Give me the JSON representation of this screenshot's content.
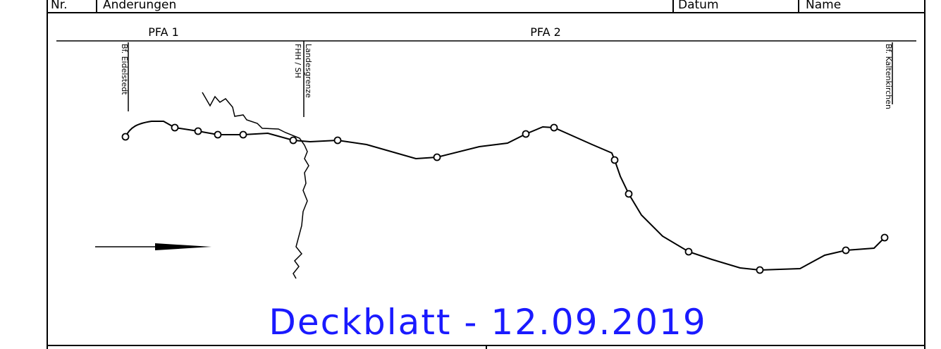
{
  "header": {
    "columns": [
      "Nr.",
      "Änderungen",
      "Datum",
      "Name"
    ]
  },
  "sections": [
    "PFA 1",
    "PFA 2"
  ],
  "stations": {
    "start": "Bf. Eidelstedt",
    "border_top": "Landesgrenze",
    "border_bottom": "FHH / SH",
    "end": "Bf. Kaltenkirchen"
  },
  "title": "Deckblatt - 12.09.2019"
}
